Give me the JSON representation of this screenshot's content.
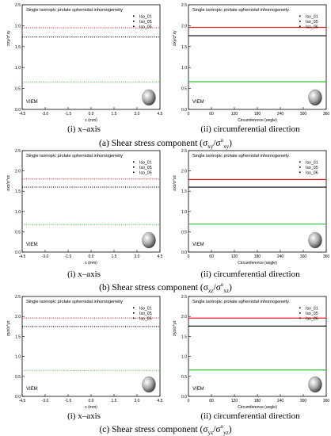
{
  "figure": {
    "rows": [
      {
        "id": "a",
        "caption": {
          "label": "(a)",
          "text": "Shear stress component (σ",
          "sym": "xy",
          "mid": "/σ",
          "sup": "o",
          "sym2": "xy",
          "end": ")"
        },
        "sub_left": {
          "label": "(i)",
          "text": "x–axis"
        },
        "sub_right": {
          "label": "(ii)",
          "text": "circumferential direction"
        }
      },
      {
        "id": "b",
        "caption": {
          "label": "(b)",
          "text": "Shear stress component (σ",
          "sym": "xz",
          "mid": "/σ",
          "sup": "o",
          "sym2": "xz",
          "end": ")"
        },
        "sub_left": {
          "label": "(i)",
          "text": "x–axis"
        },
        "sub_right": {
          "label": "(ii)",
          "text": "circumferential direction"
        }
      },
      {
        "id": "c",
        "caption": {
          "label": "(c)",
          "text": "Shear stress component (σ",
          "sym": "yz",
          "mid": "/σ",
          "sup": "o",
          "sym2": "yz",
          "end": ")"
        },
        "sub_left": {
          "label": "(i)",
          "text": "x–axis"
        },
        "sub_right": {
          "label": "(ii)",
          "text": "circumferential direction"
        }
      }
    ]
  },
  "chart_data": [
    {
      "type": "line",
      "row": "a",
      "col": "left",
      "title": "Single isotropic prolate spheroidal inhomogeneity",
      "xlabel": "x (mm)",
      "ylabel": "σxy/σ°xy",
      "xlim": [
        -4.5,
        4.5
      ],
      "ylim": [
        0,
        2.5
      ],
      "xticks": [
        "-4.5",
        "-3.0",
        "-1.5",
        "0.0",
        "1.5",
        "3.0",
        "4.5"
      ],
      "yticks": [
        "0.0",
        "0.5",
        "1.0",
        "1.5",
        "2.0",
        "2.5"
      ],
      "annotation": "VIEM",
      "series": [
        {
          "name": "Iso_01",
          "color": "#000000",
          "style": "dotted",
          "x": [
            -4.5,
            4.5
          ],
          "y": [
            1.73,
            1.73
          ]
        },
        {
          "name": "Iso_05",
          "color": "#e02020",
          "style": "dotted",
          "x": [
            -4.5,
            4.5
          ],
          "y": [
            1.95,
            1.95
          ]
        },
        {
          "name": "Iso_06",
          "color": "#30c030",
          "style": "dotted",
          "x": [
            -4.5,
            4.5
          ],
          "y": [
            0.65,
            0.65
          ]
        }
      ]
    },
    {
      "type": "line",
      "row": "a",
      "col": "right",
      "title": "Single isotropic prolate spheroidal inhomogeneity",
      "xlabel": "Circumference (angle)",
      "ylabel": "σxy/σ°xy",
      "xlim": [
        0,
        360
      ],
      "ylim": [
        0,
        2.5
      ],
      "xticks": [
        "0",
        "60",
        "120",
        "180",
        "240",
        "300",
        "360"
      ],
      "yticks": [
        "0.0",
        "0.5",
        "1.0",
        "1.5",
        "2.0",
        "2.5"
      ],
      "annotation": "VIEM",
      "series": [
        {
          "name": "Iso_01",
          "color": "#000000",
          "style": "solid",
          "x": [
            0,
            360
          ],
          "y": [
            1.76,
            1.76
          ]
        },
        {
          "name": "Iso_05",
          "color": "#e02020",
          "style": "solid",
          "x": [
            0,
            360
          ],
          "y": [
            1.96,
            1.96
          ]
        },
        {
          "name": "Iso_06",
          "color": "#30c030",
          "style": "solid",
          "x": [
            0,
            360
          ],
          "y": [
            0.66,
            0.66
          ]
        }
      ]
    },
    {
      "type": "line",
      "row": "b",
      "col": "left",
      "title": "Single isotropic prolate spheroidal inhomogeneity",
      "xlabel": "x (mm)",
      "ylabel": "σxz/σ°xz",
      "xlim": [
        -4.5,
        4.5
      ],
      "ylim": [
        0,
        2.5
      ],
      "xticks": [
        "-4.5",
        "-3.0",
        "-1.5",
        "0.0",
        "1.5",
        "3.0",
        "4.5"
      ],
      "yticks": [
        "0.0",
        "0.5",
        "1.0",
        "1.5",
        "2.0",
        "2.5"
      ],
      "annotation": "VIEM",
      "series": [
        {
          "name": "Iso_01",
          "color": "#000000",
          "style": "dotted",
          "x": [
            -4.5,
            4.5
          ],
          "y": [
            1.6,
            1.6
          ]
        },
        {
          "name": "Iso_05",
          "color": "#e02020",
          "style": "dotted",
          "x": [
            -4.5,
            4.5
          ],
          "y": [
            1.8,
            1.8
          ]
        },
        {
          "name": "Iso_06",
          "color": "#30c030",
          "style": "dotted",
          "x": [
            -4.5,
            4.5
          ],
          "y": [
            0.68,
            0.68
          ]
        }
      ]
    },
    {
      "type": "line",
      "row": "b",
      "col": "right",
      "title": "Single isotropic prolate spheroidal inhomogeneity",
      "xlabel": "Circumference (angle)",
      "ylabel": "σxz/σ°xz",
      "xlim": [
        0,
        360
      ],
      "ylim": [
        0,
        2.5
      ],
      "xticks": [
        "0",
        "60",
        "120",
        "180",
        "240",
        "300",
        "360"
      ],
      "yticks": [
        "0.0",
        "0.5",
        "1.0",
        "1.5",
        "2.0",
        "2.5"
      ],
      "annotation": "VIEM",
      "series": [
        {
          "name": "Iso_01",
          "color": "#000000",
          "style": "solid",
          "x": [
            0,
            360
          ],
          "y": [
            1.6,
            1.6
          ]
        },
        {
          "name": "Iso_05",
          "color": "#e02020",
          "style": "solid",
          "x": [
            0,
            360
          ],
          "y": [
            1.79,
            1.79
          ]
        },
        {
          "name": "Iso_06",
          "color": "#30c030",
          "style": "solid",
          "x": [
            0,
            360
          ],
          "y": [
            0.69,
            0.69
          ]
        }
      ]
    },
    {
      "type": "line",
      "row": "c",
      "col": "left",
      "title": "Single isotropic prolate spheroidal inhomogeneity",
      "xlabel": "x (mm)",
      "ylabel": "σyz/σ°yz",
      "xlim": [
        -4.5,
        4.5
      ],
      "ylim": [
        0,
        2.5
      ],
      "xticks": [
        "-4.5",
        "-3.0",
        "-1.5",
        "0.0",
        "1.5",
        "3.0",
        "4.5"
      ],
      "yticks": [
        "0.0",
        "0.5",
        "1.0",
        "1.5",
        "2.0",
        "2.5"
      ],
      "annotation": "VIEM",
      "series": [
        {
          "name": "Iso_01",
          "color": "#000000",
          "style": "dotted",
          "x": [
            -4.5,
            4.5
          ],
          "y": [
            1.75,
            1.75
          ]
        },
        {
          "name": "Iso_05",
          "color": "#e02020",
          "style": "dotted",
          "x": [
            -4.5,
            4.5
          ],
          "y": [
            1.96,
            1.96
          ]
        },
        {
          "name": "Iso_06",
          "color": "#30c030",
          "style": "dotted",
          "x": [
            -4.5,
            4.5
          ],
          "y": [
            0.65,
            0.65
          ]
        }
      ]
    },
    {
      "type": "line",
      "row": "c",
      "col": "right",
      "title": "Single isotropic prolate spheroidal inhomogeneity",
      "xlabel": "Circumference (angle)",
      "ylabel": "σyz/σ°yz",
      "xlim": [
        0,
        360
      ],
      "ylim": [
        0,
        2.5
      ],
      "xticks": [
        "0",
        "60",
        "120",
        "180",
        "240",
        "300",
        "360"
      ],
      "yticks": [
        "0.0",
        "0.5",
        "1.0",
        "1.5",
        "2.0",
        "2.5"
      ],
      "annotation": "VIEM",
      "series": [
        {
          "name": "Iso_01",
          "color": "#000000",
          "style": "solid",
          "x": [
            0,
            360
          ],
          "y": [
            1.76,
            1.76
          ]
        },
        {
          "name": "Iso_05",
          "color": "#e02020",
          "style": "solid",
          "x": [
            0,
            360
          ],
          "y": [
            1.96,
            1.96
          ]
        },
        {
          "name": "Iso_06",
          "color": "#30c030",
          "style": "solid",
          "x": [
            0,
            360
          ],
          "y": [
            0.66,
            0.66
          ]
        }
      ]
    }
  ]
}
